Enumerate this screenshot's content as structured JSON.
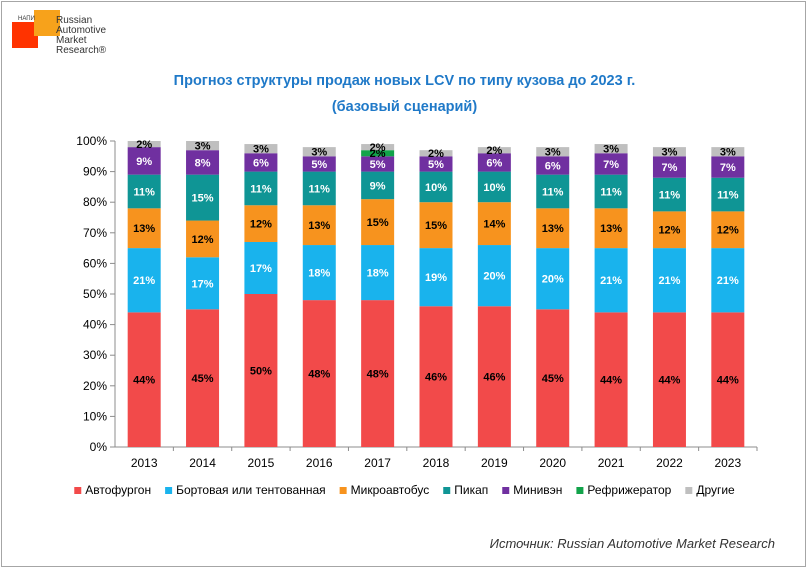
{
  "logo": {
    "tag": "НАПИ",
    "brand": "Russian\nAutomotive\nMarket\nResearch®"
  },
  "title_line1": "Прогноз структуры продаж новых LCV по типу кузова до 2023 г.",
  "title_line2": "(базовый сценарий)",
  "source": "Источник: Russian Automotive Market Research",
  "chart_data": {
    "type": "bar",
    "stacked": true,
    "title": "Прогноз структуры продаж новых LCV по типу кузова до 2023 г. (базовый сценарий)",
    "categories": [
      "2013",
      "2014",
      "2015",
      "2016",
      "2017",
      "2018",
      "2019",
      "2020",
      "2021",
      "2022",
      "2023"
    ],
    "ylim": [
      0,
      100
    ],
    "yticks": [
      0,
      10,
      20,
      30,
      40,
      50,
      60,
      70,
      80,
      90,
      100
    ],
    "ytick_labels": [
      "0%",
      "10%",
      "20%",
      "30%",
      "40%",
      "50%",
      "60%",
      "70%",
      "80%",
      "90%",
      "100%"
    ],
    "grid": false,
    "legend_position": "bottom",
    "series": [
      {
        "name": "Автофургон",
        "color": "#f24a4a",
        "label_color": "#000000",
        "values": [
          44,
          45,
          50,
          48,
          48,
          46,
          46,
          45,
          44,
          44,
          44
        ]
      },
      {
        "name": "Бортовая или тентованная",
        "color": "#19b3ed",
        "label_color": "#ffffff",
        "values": [
          21,
          17,
          17,
          18,
          18,
          19,
          20,
          20,
          21,
          21,
          21
        ]
      },
      {
        "name": "Микроавтобус",
        "color": "#f7931e",
        "label_color": "#000000",
        "values": [
          13,
          12,
          12,
          13,
          15,
          15,
          14,
          13,
          13,
          12,
          12
        ]
      },
      {
        "name": "Пикап",
        "color": "#0f9595",
        "label_color": "#ffffff",
        "values": [
          11,
          15,
          11,
          11,
          9,
          10,
          10,
          11,
          11,
          11,
          11
        ]
      },
      {
        "name": "Минивэн",
        "color": "#7030a0",
        "label_color": "#ffffff",
        "values": [
          9,
          8,
          6,
          5,
          5,
          5,
          6,
          6,
          7,
          7,
          7
        ]
      },
      {
        "name": "Рефрижератор",
        "color": "#12a34a",
        "label_color": "#000000",
        "values": [
          0,
          0,
          0,
          0,
          2,
          0,
          0,
          0,
          0,
          0,
          0
        ]
      },
      {
        "name": "Другие",
        "color": "#bfbfbf",
        "label_color": "#000000",
        "values": [
          2,
          3,
          3,
          3,
          2,
          2,
          2,
          3,
          3,
          3,
          3
        ]
      }
    ]
  }
}
